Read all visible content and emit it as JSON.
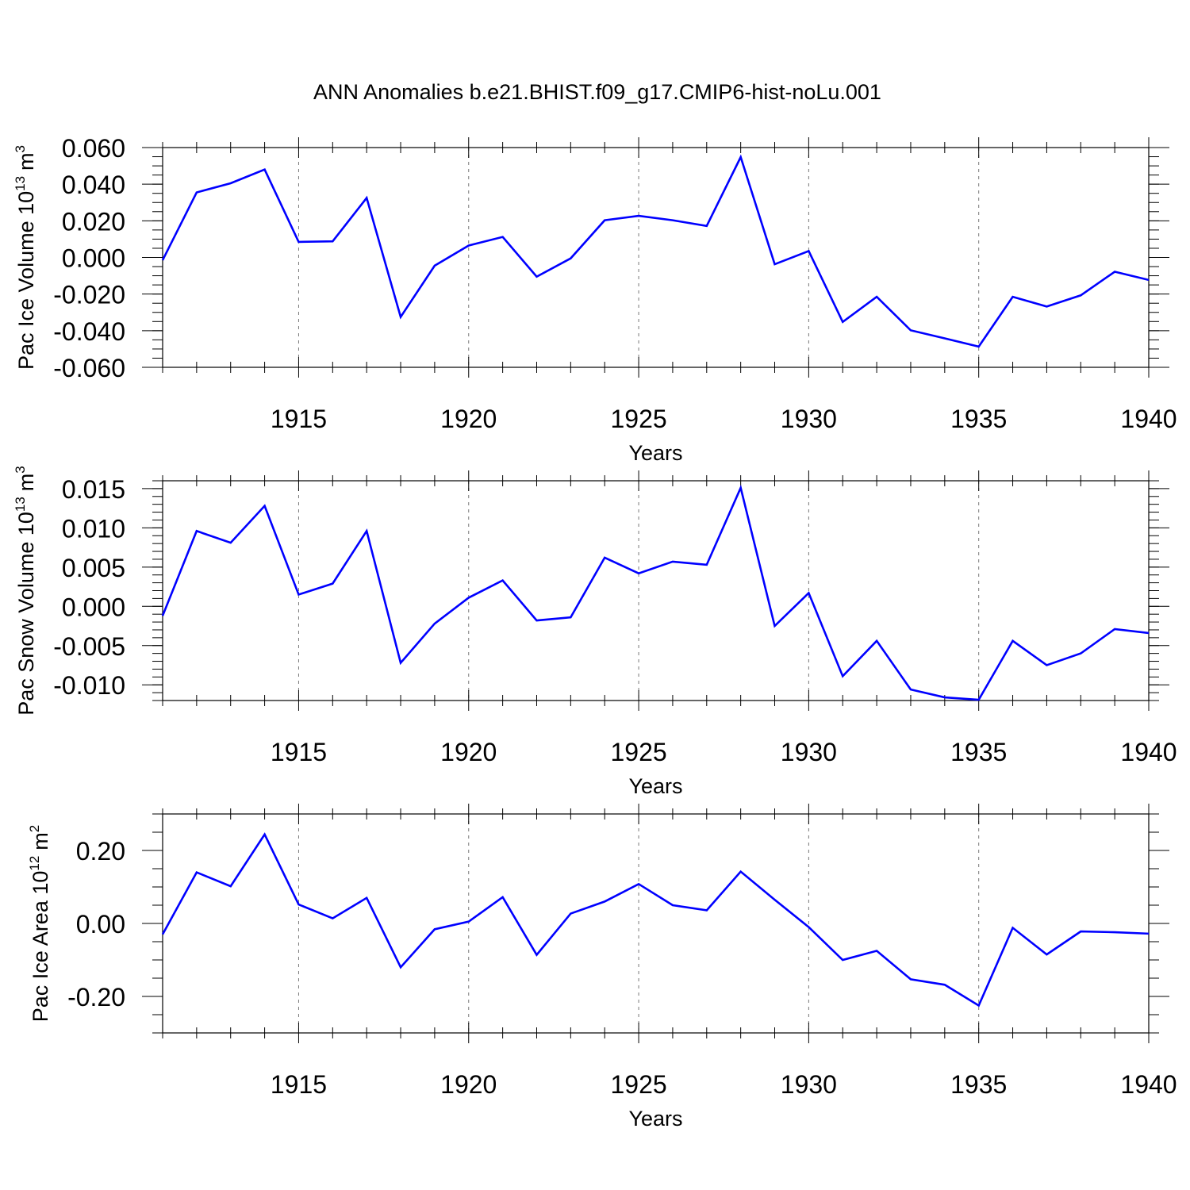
{
  "title": "ANN Anomalies b.e21.BHIST.f09_g17.CMIP6-hist-noLu.001",
  "colors": {
    "series": "#0000ff",
    "frame": "#000000",
    "grid": "#777777"
  },
  "chart_data": [
    {
      "type": "line",
      "id": "ice-volume",
      "ylabel_main": "Pac Ice Volume 10",
      "ylabel_exp": "13",
      "ylabel_unit": "m",
      "ylabel_unit_exp": "3",
      "xlabel": "Years",
      "xlim": [
        1911,
        1940
      ],
      "ylim": [
        -0.06,
        0.06
      ],
      "yticks": [
        -0.06,
        -0.04,
        -0.02,
        0.0,
        0.02,
        0.04,
        0.06
      ],
      "ytick_labels": [
        "-0.060",
        "-0.040",
        "-0.020",
        "0.000",
        "0.020",
        "0.040",
        "0.060"
      ],
      "yminor_step": 0.005,
      "xticks": [
        1915,
        1920,
        1925,
        1930,
        1935,
        1940
      ],
      "xtick_labels": [
        "1915",
        "1920",
        "1925",
        "1930",
        "1935",
        "1940"
      ],
      "gridlines_x": [
        1915,
        1920,
        1925,
        1930,
        1935
      ],
      "x": [
        1911,
        1912,
        1913,
        1914,
        1915,
        1916,
        1917,
        1918,
        1919,
        1920,
        1921,
        1922,
        1923,
        1924,
        1925,
        1926,
        1927,
        1928,
        1929,
        1930,
        1931,
        1932,
        1933,
        1934,
        1935,
        1936,
        1937,
        1938,
        1939,
        1940
      ],
      "series": [
        {
          "name": "Pac Ice Volume",
          "values": [
            -0.0015,
            0.0355,
            0.0405,
            0.048,
            0.0085,
            0.0088,
            0.0325,
            -0.0325,
            -0.0045,
            0.0065,
            0.0112,
            -0.0105,
            -0.0005,
            0.0203,
            0.0227,
            0.0203,
            0.0172,
            0.0548,
            -0.0037,
            0.0035,
            -0.0352,
            -0.0215,
            -0.0398,
            -0.0442,
            -0.0487,
            -0.0215,
            -0.0268,
            -0.0207,
            -0.0078,
            -0.0123
          ]
        }
      ]
    },
    {
      "type": "line",
      "id": "snow-volume",
      "ylabel_main": "Pac Snow Volume 10",
      "ylabel_exp": "13",
      "ylabel_unit": "m",
      "ylabel_unit_exp": "3",
      "xlabel": "Years",
      "xlim": [
        1911,
        1940
      ],
      "ylim": [
        -0.012,
        0.016
      ],
      "yticks": [
        -0.01,
        -0.005,
        0.0,
        0.005,
        0.01,
        0.015
      ],
      "ytick_labels": [
        "-0.010",
        "-0.005",
        "0.000",
        "0.005",
        "0.010",
        "0.015"
      ],
      "yminor_step": 0.001,
      "xticks": [
        1915,
        1920,
        1925,
        1930,
        1935,
        1940
      ],
      "xtick_labels": [
        "1915",
        "1920",
        "1925",
        "1930",
        "1935",
        "1940"
      ],
      "gridlines_x": [
        1915,
        1920,
        1925,
        1930,
        1935
      ],
      "x": [
        1911,
        1912,
        1913,
        1914,
        1915,
        1916,
        1917,
        1918,
        1919,
        1920,
        1921,
        1922,
        1923,
        1924,
        1925,
        1926,
        1927,
        1928,
        1929,
        1930,
        1931,
        1932,
        1933,
        1934,
        1935,
        1936,
        1937,
        1938,
        1939,
        1940
      ],
      "series": [
        {
          "name": "Pac Snow Volume",
          "values": [
            -0.0012,
            0.0096,
            0.0081,
            0.0128,
            0.0015,
            0.0029,
            0.0096,
            -0.0072,
            -0.0022,
            0.0011,
            0.0033,
            -0.0018,
            -0.0014,
            0.0062,
            0.0042,
            0.0057,
            0.0053,
            0.0151,
            -0.0025,
            0.0017,
            -0.0089,
            -0.0044,
            -0.0106,
            -0.0116,
            -0.0119,
            -0.0044,
            -0.0075,
            -0.006,
            -0.0029,
            -0.0034
          ]
        }
      ]
    },
    {
      "type": "line",
      "id": "ice-area",
      "ylabel_main": "Pac Ice Area 10",
      "ylabel_exp": "12",
      "ylabel_unit": "m",
      "ylabel_unit_exp": "2",
      "xlabel": "Years",
      "xlim": [
        1911,
        1940
      ],
      "ylim": [
        -0.3,
        0.3
      ],
      "yticks": [
        -0.2,
        0.0,
        0.2
      ],
      "ytick_labels": [
        "-0.20",
        "0.00",
        "0.20"
      ],
      "yminor_step": 0.05,
      "xticks": [
        1915,
        1920,
        1925,
        1930,
        1935,
        1940
      ],
      "xtick_labels": [
        "1915",
        "1920",
        "1925",
        "1930",
        "1935",
        "1940"
      ],
      "gridlines_x": [
        1915,
        1920,
        1925,
        1930,
        1935
      ],
      "x": [
        1911,
        1912,
        1913,
        1914,
        1915,
        1916,
        1917,
        1918,
        1919,
        1920,
        1921,
        1922,
        1923,
        1924,
        1925,
        1926,
        1927,
        1928,
        1929,
        1930,
        1931,
        1932,
        1933,
        1934,
        1935,
        1936,
        1937,
        1938,
        1939,
        1940
      ],
      "series": [
        {
          "name": "Pac Ice Area",
          "values": [
            -0.03,
            0.14,
            0.102,
            0.244,
            0.052,
            0.014,
            0.07,
            -0.12,
            -0.016,
            0.005,
            0.072,
            -0.086,
            0.027,
            0.06,
            0.108,
            0.05,
            0.036,
            0.142,
            0.065,
            -0.01,
            -0.1,
            -0.075,
            -0.153,
            -0.168,
            -0.225,
            -0.012,
            -0.085,
            -0.022,
            -0.024,
            -0.028
          ]
        }
      ]
    }
  ]
}
